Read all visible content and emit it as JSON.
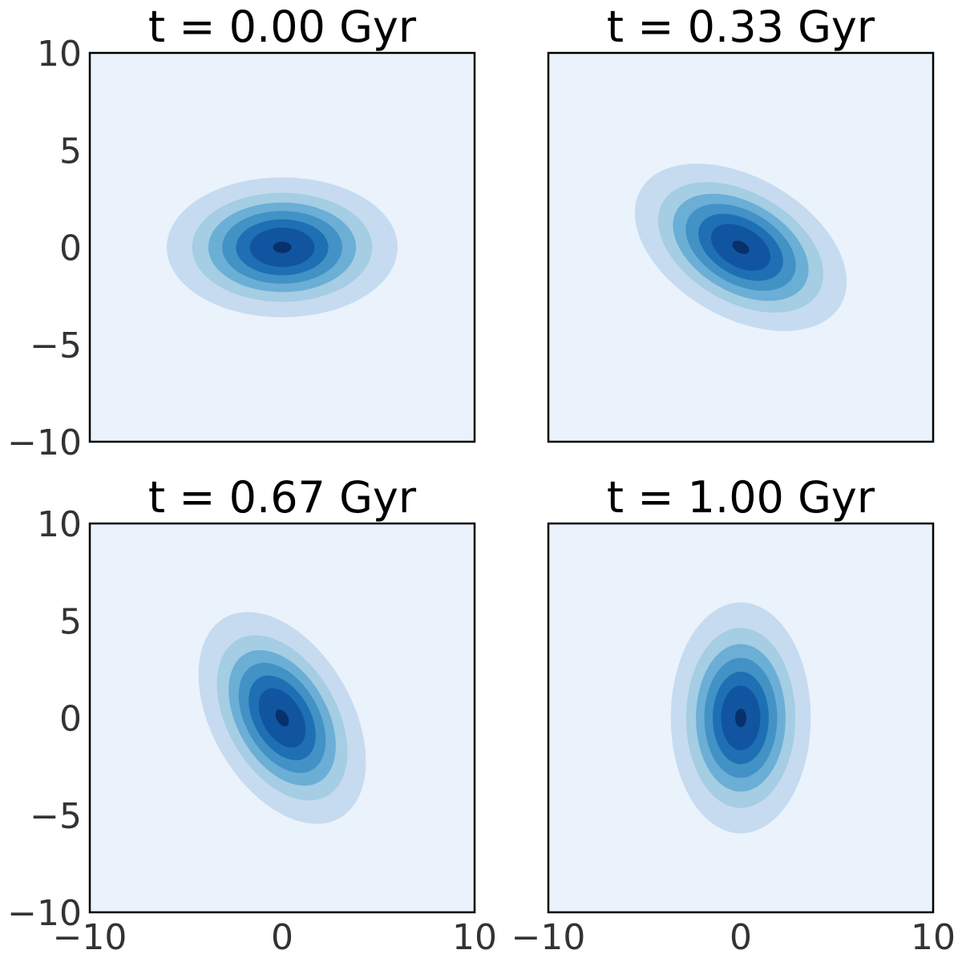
{
  "chart_data": [
    {
      "type": "contour",
      "title": "t = 0.00 Gyr",
      "xlim": [
        -10,
        10
      ],
      "ylim": [
        -10,
        10
      ],
      "x_ticks": [
        "−10",
        "0",
        "10"
      ],
      "y_ticks": [
        "−10",
        "−5",
        "0",
        "5",
        "10"
      ],
      "show_x_ticks": false,
      "show_y_ticks": true,
      "center": [
        0,
        0
      ],
      "sigma_major": 6.0,
      "sigma_minor": 3.6,
      "major_axis_angle_deg": 0,
      "grid": false
    },
    {
      "type": "contour",
      "title": "t = 0.33 Gyr",
      "xlim": [
        -10,
        10
      ],
      "ylim": [
        -10,
        10
      ],
      "x_ticks": [
        "−10",
        "0",
        "10"
      ],
      "y_ticks": [
        "−10",
        "−5",
        "0",
        "5",
        "10"
      ],
      "show_x_ticks": false,
      "show_y_ticks": false,
      "center": [
        0,
        0
      ],
      "sigma_major": 6.0,
      "sigma_minor": 3.6,
      "major_axis_angle_deg": -30,
      "grid": false
    },
    {
      "type": "contour",
      "title": "t = 0.67 Gyr",
      "xlim": [
        -10,
        10
      ],
      "ylim": [
        -10,
        10
      ],
      "x_ticks": [
        "−10",
        "0",
        "10"
      ],
      "y_ticks": [
        "−10",
        "−5",
        "0",
        "5",
        "10"
      ],
      "show_x_ticks": true,
      "show_y_ticks": true,
      "center": [
        0,
        0
      ],
      "sigma_major": 6.0,
      "sigma_minor": 3.6,
      "major_axis_angle_deg": -60,
      "grid": false
    },
    {
      "type": "contour",
      "title": "t = 1.00 Gyr",
      "xlim": [
        -10,
        10
      ],
      "ylim": [
        -10,
        10
      ],
      "x_ticks": [
        "−10",
        "0",
        "10"
      ],
      "y_ticks": [
        "−10",
        "−5",
        "0",
        "5",
        "10"
      ],
      "show_x_ticks": true,
      "show_y_ticks": false,
      "center": [
        0,
        0
      ],
      "sigma_major": 6.0,
      "sigma_minor": 3.6,
      "major_axis_angle_deg": 90,
      "grid": false
    }
  ],
  "colors": {
    "colormap": "Blues",
    "levels": [
      "#eaf2fb",
      "#d6e5f4",
      "#c6dbef",
      "#a5cde3",
      "#6baed6",
      "#4292c6",
      "#1f6fb4",
      "#1155a0",
      "#08306b"
    ],
    "frame": "#000000",
    "tick_text": "#333333",
    "title_text": "#000000"
  }
}
